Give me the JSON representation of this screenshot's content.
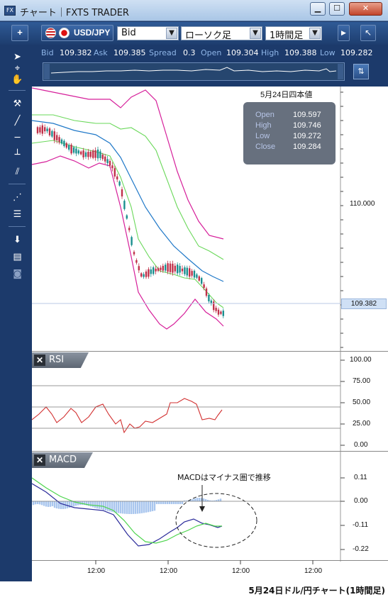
{
  "window": {
    "title": "チャート｜FXTS TRADER",
    "app_icon": "FX"
  },
  "toolbar": {
    "add_label": "+",
    "symbol": "USD/JPY",
    "price_type": "Bid",
    "chart_type": "ローソク足",
    "timeframe": "1時間足"
  },
  "quote": {
    "bid_label": "Bid",
    "bid": "109.382",
    "ask_label": "Ask",
    "ask": "109.385",
    "spread_label": "Spread",
    "spread": "0.3",
    "open_label": "Open",
    "open": "109.304",
    "high_label": "High",
    "high": "109.388",
    "low_label": "Low",
    "low": "109.282"
  },
  "infobox": {
    "title": "5月24日四本値",
    "rows": [
      {
        "label": "Open",
        "value": "109.597"
      },
      {
        "label": "High",
        "value": "109.746"
      },
      {
        "label": "Low",
        "value": "109.272"
      },
      {
        "label": "Close",
        "value": "109.284"
      }
    ]
  },
  "price_axis": {
    "label": "110.000",
    "current": "109.382"
  },
  "rsi": {
    "name": "RSI",
    "ticks": [
      "100.00",
      "75.00",
      "50.00",
      "25.00",
      "0.00"
    ]
  },
  "macd": {
    "name": "MACD",
    "ticks": [
      "0.11",
      "0.00",
      "-0.11",
      "-0.22"
    ],
    "annotation": "MACDはマイナス圏で推移"
  },
  "time_axis": [
    "12:00",
    "12:00",
    "12:00",
    "12:00"
  ],
  "caption": "5月24日ドル/円チャート(1時間足)",
  "colors": {
    "accent": "#1c3a6b",
    "up": "#1a8f8f",
    "down": "#c0304a",
    "bb_outer": "#d61f9a",
    "bb_inner": "#6ad85a",
    "ma": "#1f78c8",
    "rsi": "#d23030",
    "macd": "#2a2a9a",
    "signal": "#4cd44c",
    "histogram": "#a9c6ee"
  }
}
